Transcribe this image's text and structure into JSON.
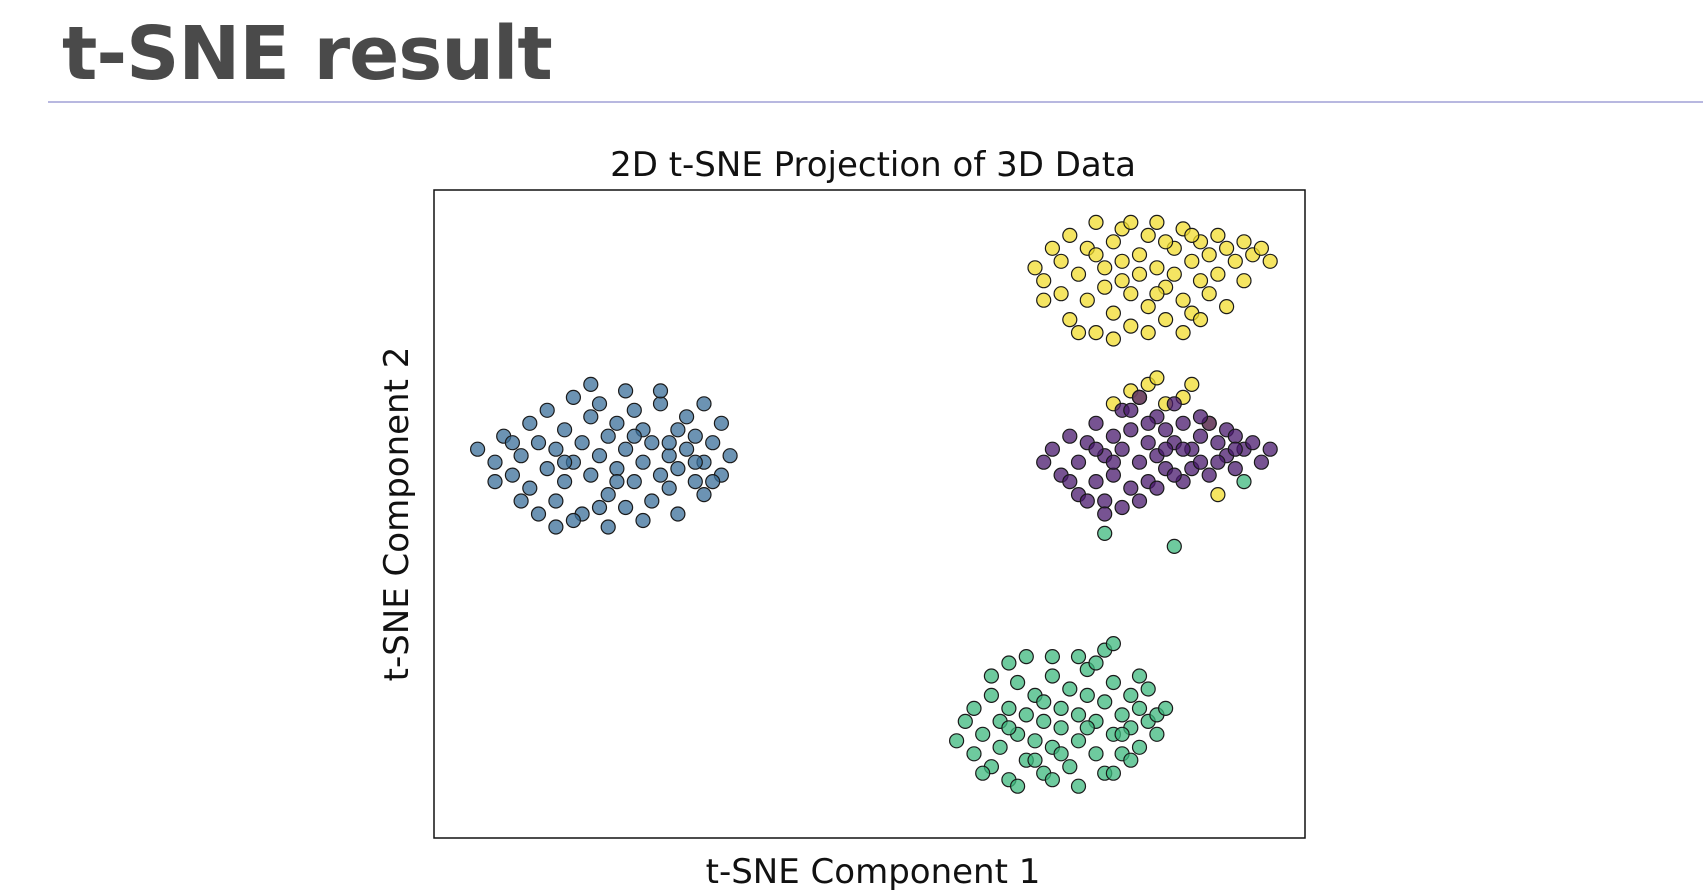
{
  "slide": {
    "title": "t-SNE result"
  },
  "chart_data": {
    "type": "scatter",
    "title": "2D t-SNE Projection of 3D Data",
    "xlabel": "t-SNE Component 1",
    "ylabel": "t-SNE Component 2",
    "xlim": [
      0,
      100
    ],
    "ylim": [
      0,
      100
    ],
    "ticks": "none",
    "grid": false,
    "legend": "none",
    "marker_edge_color": "#1a1a1a",
    "marker_opacity": 0.75,
    "series": [
      {
        "color": "#3b6f9a",
        "points": [
          [
            5,
            60
          ],
          [
            7,
            58
          ],
          [
            8,
            62
          ],
          [
            9,
            56
          ],
          [
            10,
            59
          ],
          [
            11,
            64
          ],
          [
            11,
            54
          ],
          [
            12,
            61
          ],
          [
            13,
            57
          ],
          [
            13,
            66
          ],
          [
            14,
            52
          ],
          [
            14,
            60
          ],
          [
            15,
            63
          ],
          [
            15,
            55
          ],
          [
            16,
            68
          ],
          [
            16,
            58
          ],
          [
            17,
            61
          ],
          [
            17,
            50
          ],
          [
            18,
            65
          ],
          [
            18,
            56
          ],
          [
            19,
            59
          ],
          [
            19,
            67
          ],
          [
            20,
            53
          ],
          [
            20,
            62
          ],
          [
            21,
            57
          ],
          [
            21,
            64
          ],
          [
            22,
            51
          ],
          [
            22,
            60
          ],
          [
            23,
            66
          ],
          [
            23,
            55
          ],
          [
            24,
            58
          ],
          [
            24,
            63
          ],
          [
            25,
            52
          ],
          [
            25,
            61
          ],
          [
            26,
            56
          ],
          [
            26,
            67
          ],
          [
            27,
            59
          ],
          [
            27,
            54
          ],
          [
            28,
            63
          ],
          [
            28,
            57
          ],
          [
            29,
            60
          ],
          [
            29,
            65
          ],
          [
            30,
            55
          ],
          [
            30,
            62
          ],
          [
            31,
            58
          ],
          [
            31,
            53
          ],
          [
            32,
            61
          ],
          [
            33,
            56
          ],
          [
            33,
            64
          ],
          [
            34,
            59
          ],
          [
            12,
            50
          ],
          [
            16,
            49
          ],
          [
            20,
            48
          ],
          [
            24,
            49
          ],
          [
            28,
            50
          ],
          [
            9,
            61
          ],
          [
            18,
            70
          ],
          [
            22,
            69
          ],
          [
            26,
            69
          ],
          [
            31,
            67
          ],
          [
            7,
            55
          ],
          [
            10,
            52
          ],
          [
            14,
            48
          ],
          [
            19,
            51
          ],
          [
            23,
            62
          ],
          [
            27,
            61
          ],
          [
            30,
            58
          ],
          [
            32,
            55
          ],
          [
            15,
            58
          ],
          [
            21,
            55
          ]
        ]
      },
      {
        "color": "#f2dc2e",
        "points": [
          [
            69,
            88
          ],
          [
            70,
            86
          ],
          [
            71,
            91
          ],
          [
            72,
            84
          ],
          [
            72,
            89
          ],
          [
            73,
            93
          ],
          [
            73,
            80
          ],
          [
            74,
            87
          ],
          [
            75,
            91
          ],
          [
            75,
            83
          ],
          [
            76,
            95
          ],
          [
            76,
            78
          ],
          [
            77,
            88
          ],
          [
            77,
            85
          ],
          [
            78,
            92
          ],
          [
            78,
            81
          ],
          [
            79,
            89
          ],
          [
            79,
            94
          ],
          [
            80,
            84
          ],
          [
            80,
            79
          ],
          [
            81,
            90
          ],
          [
            81,
            87
          ],
          [
            82,
            93
          ],
          [
            82,
            82
          ],
          [
            83,
            88
          ],
          [
            83,
            95
          ],
          [
            84,
            85
          ],
          [
            84,
            80
          ],
          [
            85,
            91
          ],
          [
            85,
            87
          ],
          [
            86,
            94
          ],
          [
            86,
            83
          ],
          [
            87,
            89
          ],
          [
            87,
            81
          ],
          [
            88,
            92
          ],
          [
            88,
            86
          ],
          [
            89,
            90
          ],
          [
            89,
            84
          ],
          [
            90,
            93
          ],
          [
            90,
            87
          ],
          [
            91,
            91
          ],
          [
            91,
            82
          ],
          [
            92,
            89
          ],
          [
            93,
            92
          ],
          [
            93,
            86
          ],
          [
            94,
            90
          ],
          [
            95,
            91
          ],
          [
            96,
            89
          ],
          [
            74,
            78
          ],
          [
            78,
            77
          ],
          [
            82,
            78
          ],
          [
            86,
            78
          ],
          [
            88,
            80
          ],
          [
            70,
            83
          ],
          [
            76,
            90
          ],
          [
            80,
            95
          ],
          [
            84,
            92
          ],
          [
            79,
            86
          ],
          [
            83,
            84
          ],
          [
            87,
            93
          ],
          [
            80,
            69
          ],
          [
            81,
            68
          ],
          [
            82,
            70
          ],
          [
            83,
            71
          ],
          [
            84,
            67
          ],
          [
            86,
            68
          ],
          [
            87,
            70
          ],
          [
            78,
            67
          ],
          [
            89,
            64
          ],
          [
            90,
            53
          ]
        ]
      },
      {
        "color": "#4a1a6e",
        "points": [
          [
            70,
            58
          ],
          [
            71,
            60
          ],
          [
            72,
            56
          ],
          [
            73,
            62
          ],
          [
            74,
            58
          ],
          [
            74,
            53
          ],
          [
            75,
            61
          ],
          [
            76,
            55
          ],
          [
            76,
            64
          ],
          [
            77,
            59
          ],
          [
            77,
            52
          ],
          [
            78,
            62
          ],
          [
            78,
            56
          ],
          [
            79,
            66
          ],
          [
            79,
            60
          ],
          [
            80,
            54
          ],
          [
            80,
            63
          ],
          [
            81,
            58
          ],
          [
            81,
            68
          ],
          [
            82,
            61
          ],
          [
            82,
            55
          ],
          [
            83,
            65
          ],
          [
            83,
            59
          ],
          [
            84,
            63
          ],
          [
            84,
            57
          ],
          [
            85,
            67
          ],
          [
            85,
            61
          ],
          [
            86,
            55
          ],
          [
            86,
            64
          ],
          [
            87,
            60
          ],
          [
            87,
            57
          ],
          [
            88,
            62
          ],
          [
            88,
            58
          ],
          [
            89,
            64
          ],
          [
            89,
            56
          ],
          [
            90,
            61
          ],
          [
            91,
            59
          ],
          [
            91,
            63
          ],
          [
            92,
            57
          ],
          [
            92,
            62
          ],
          [
            93,
            60
          ],
          [
            94,
            61
          ],
          [
            95,
            58
          ],
          [
            96,
            60
          ],
          [
            73,
            55
          ],
          [
            75,
            52
          ],
          [
            77,
            50
          ],
          [
            79,
            51
          ],
          [
            81,
            52
          ],
          [
            83,
            54
          ],
          [
            85,
            56
          ],
          [
            78,
            58
          ],
          [
            82,
            64
          ],
          [
            86,
            60
          ],
          [
            88,
            65
          ],
          [
            76,
            60
          ],
          [
            80,
            66
          ],
          [
            84,
            60
          ],
          [
            90,
            58
          ],
          [
            92,
            60
          ]
        ]
      },
      {
        "color": "#3db87e",
        "points": [
          [
            60,
            15
          ],
          [
            61,
            18
          ],
          [
            62,
            13
          ],
          [
            62,
            20
          ],
          [
            63,
            16
          ],
          [
            64,
            11
          ],
          [
            64,
            22
          ],
          [
            65,
            18
          ],
          [
            65,
            14
          ],
          [
            66,
            20
          ],
          [
            66,
            9
          ],
          [
            67,
            16
          ],
          [
            67,
            24
          ],
          [
            68,
            12
          ],
          [
            68,
            19
          ],
          [
            69,
            22
          ],
          [
            69,
            15
          ],
          [
            70,
            10
          ],
          [
            70,
            18
          ],
          [
            71,
            25
          ],
          [
            71,
            14
          ],
          [
            72,
            20
          ],
          [
            72,
            17
          ],
          [
            73,
            23
          ],
          [
            73,
            11
          ],
          [
            74,
            19
          ],
          [
            74,
            15
          ],
          [
            75,
            22
          ],
          [
            75,
            26
          ],
          [
            76,
            13
          ],
          [
            76,
            18
          ],
          [
            77,
            21
          ],
          [
            77,
            10
          ],
          [
            78,
            16
          ],
          [
            78,
            24
          ],
          [
            79,
            19
          ],
          [
            79,
            13
          ],
          [
            80,
            22
          ],
          [
            80,
            17
          ],
          [
            81,
            14
          ],
          [
            81,
            20
          ],
          [
            82,
            18
          ],
          [
            82,
            23
          ],
          [
            83,
            16
          ],
          [
            83,
            19
          ],
          [
            84,
            20
          ],
          [
            64,
            25
          ],
          [
            66,
            27
          ],
          [
            68,
            28
          ],
          [
            71,
            28
          ],
          [
            74,
            28
          ],
          [
            76,
            27
          ],
          [
            77,
            29
          ],
          [
            78,
            30
          ],
          [
            63,
            10
          ],
          [
            67,
            8
          ],
          [
            71,
            9
          ],
          [
            74,
            8
          ],
          [
            78,
            10
          ],
          [
            80,
            12
          ],
          [
            85,
            45
          ],
          [
            77,
            47
          ],
          [
            93,
            55
          ],
          [
            72,
            13
          ],
          [
            66,
            17
          ],
          [
            70,
            21
          ],
          [
            75,
            17
          ],
          [
            79,
            16
          ],
          [
            81,
            25
          ],
          [
            69,
            12
          ]
        ]
      }
    ]
  }
}
